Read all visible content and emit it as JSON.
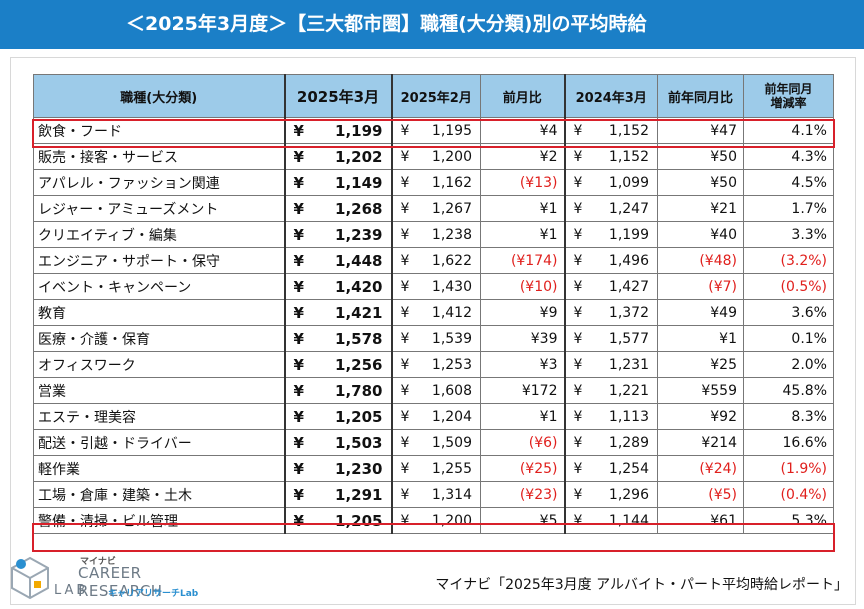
{
  "header": {
    "title": "＜2025年3月度＞【三大都市圏】職種(大分類)別の平均時給"
  },
  "table": {
    "headers": [
      "職種(大分類)",
      "2025年3月",
      "2025年2月",
      "前月比",
      "2024年3月",
      "前年同月比",
      "前年同月増減率"
    ],
    "header_pct_line1": "前年同月",
    "header_pct_line2": "増減率",
    "yen_symbol": "¥",
    "rows": [
      {
        "category": "飲食・フード",
        "mar2025": "1,199",
        "feb2025": "1,195",
        "mom": "¥4",
        "mom_neg": false,
        "mar2024": "1,152",
        "yoy": "¥47",
        "yoy_neg": false,
        "pct": "4.1%",
        "pct_neg": false
      },
      {
        "category": "販売・接客・サービス",
        "mar2025": "1,202",
        "feb2025": "1,200",
        "mom": "¥2",
        "mom_neg": false,
        "mar2024": "1,152",
        "yoy": "¥50",
        "yoy_neg": false,
        "pct": "4.3%",
        "pct_neg": false
      },
      {
        "category": "アパレル・ファッション関連",
        "mar2025": "1,149",
        "feb2025": "1,162",
        "mom": "(¥13)",
        "mom_neg": true,
        "mar2024": "1,099",
        "yoy": "¥50",
        "yoy_neg": false,
        "pct": "4.5%",
        "pct_neg": false
      },
      {
        "category": "レジャー・アミューズメント",
        "mar2025": "1,268",
        "feb2025": "1,267",
        "mom": "¥1",
        "mom_neg": false,
        "mar2024": "1,247",
        "yoy": "¥21",
        "yoy_neg": false,
        "pct": "1.7%",
        "pct_neg": false
      },
      {
        "category": "クリエイティブ・編集",
        "mar2025": "1,239",
        "feb2025": "1,238",
        "mom": "¥1",
        "mom_neg": false,
        "mar2024": "1,199",
        "yoy": "¥40",
        "yoy_neg": false,
        "pct": "3.3%",
        "pct_neg": false
      },
      {
        "category": "エンジニア・サポート・保守",
        "mar2025": "1,448",
        "feb2025": "1,622",
        "mom": "(¥174)",
        "mom_neg": true,
        "mar2024": "1,496",
        "yoy": "(¥48)",
        "yoy_neg": true,
        "pct": "(3.2%)",
        "pct_neg": true
      },
      {
        "category": "イベント・キャンペーン",
        "mar2025": "1,420",
        "feb2025": "1,430",
        "mom": "(¥10)",
        "mom_neg": true,
        "mar2024": "1,427",
        "yoy": "(¥7)",
        "yoy_neg": true,
        "pct": "(0.5%)",
        "pct_neg": true
      },
      {
        "category": "教育",
        "mar2025": "1,421",
        "feb2025": "1,412",
        "mom": "¥9",
        "mom_neg": false,
        "mar2024": "1,372",
        "yoy": "¥49",
        "yoy_neg": false,
        "pct": "3.6%",
        "pct_neg": false
      },
      {
        "category": "医療・介護・保育",
        "mar2025": "1,578",
        "feb2025": "1,539",
        "mom": "¥39",
        "mom_neg": false,
        "mar2024": "1,577",
        "yoy": "¥1",
        "yoy_neg": false,
        "pct": "0.1%",
        "pct_neg": false
      },
      {
        "category": "オフィスワーク",
        "mar2025": "1,256",
        "feb2025": "1,253",
        "mom": "¥3",
        "mom_neg": false,
        "mar2024": "1,231",
        "yoy": "¥25",
        "yoy_neg": false,
        "pct": "2.0%",
        "pct_neg": false
      },
      {
        "category": "営業",
        "mar2025": "1,780",
        "feb2025": "1,608",
        "mom": "¥172",
        "mom_neg": false,
        "mar2024": "1,221",
        "yoy": "¥559",
        "yoy_neg": false,
        "pct": "45.8%",
        "pct_neg": false
      },
      {
        "category": "エステ・理美容",
        "mar2025": "1,205",
        "feb2025": "1,204",
        "mom": "¥1",
        "mom_neg": false,
        "mar2024": "1,113",
        "yoy": "¥92",
        "yoy_neg": false,
        "pct": "8.3%",
        "pct_neg": false
      },
      {
        "category": "配送・引越・ドライバー",
        "mar2025": "1,503",
        "feb2025": "1,509",
        "mom": "(¥6)",
        "mom_neg": true,
        "mar2024": "1,289",
        "yoy": "¥214",
        "yoy_neg": false,
        "pct": "16.6%",
        "pct_neg": false
      },
      {
        "category": "軽作業",
        "mar2025": "1,230",
        "feb2025": "1,255",
        "mom": "(¥25)",
        "mom_neg": true,
        "mar2024": "1,254",
        "yoy": "(¥24)",
        "yoy_neg": true,
        "pct": "(1.9%)",
        "pct_neg": true
      },
      {
        "category": "工場・倉庫・建築・土木",
        "mar2025": "1,291",
        "feb2025": "1,314",
        "mom": "(¥23)",
        "mom_neg": true,
        "mar2024": "1,296",
        "yoy": "(¥5)",
        "yoy_neg": true,
        "pct": "(0.4%)",
        "pct_neg": true
      },
      {
        "category": "警備・清掃・ビル管理",
        "mar2025": "1,205",
        "feb2025": "1,200",
        "mom": "¥5",
        "mom_neg": false,
        "mar2024": "1,144",
        "yoy": "¥61",
        "yoy_neg": false,
        "pct": "5.3%",
        "pct_neg": false
      }
    ],
    "highlighted_rows": [
      0,
      15
    ]
  },
  "logo": {
    "top": "マイナビ",
    "main": "CAREER RESEARCH",
    "lab": "LAB",
    "sub": "キャリアリサーチLab"
  },
  "source": "マイナビ「2025年3月度 アルバイト・パート平均時給レポート」",
  "colors": {
    "header_bg": "#1b7fc7",
    "table_header_bg": "#9dcbe9",
    "negative": "#e0201d",
    "highlight": "#d8202a"
  }
}
